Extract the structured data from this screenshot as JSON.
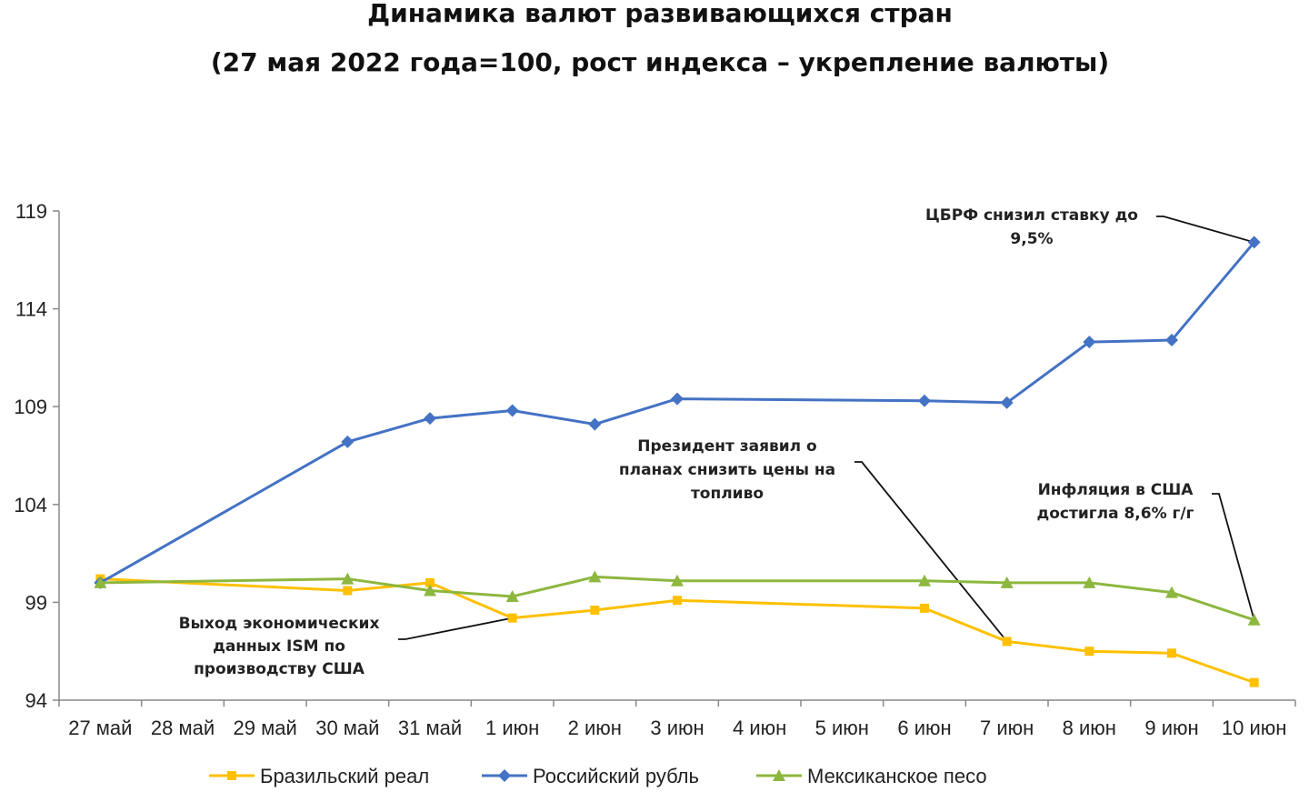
{
  "chart_data": {
    "type": "line",
    "title": "Динамика валют развивающихся стран",
    "subtitle": "(27 мая 2022 года=100, рост индекса – укрепление валюты)",
    "xlabel": "",
    "ylabel": "",
    "ylim": [
      94,
      119
    ],
    "yticks": [
      "94",
      "99",
      "104",
      "109",
      "114",
      "119"
    ],
    "categories": [
      "27 май",
      "28 май",
      "29 май",
      "30 май",
      "31 май",
      "1 июн",
      "2 июн",
      "3 июн",
      "4 июн",
      "5 июн",
      "6 июн",
      "7 июн",
      "8 июн",
      "9 июн",
      "10 июн"
    ],
    "grid": false,
    "legend_position": "bottom",
    "series": [
      {
        "name": "Бразильский реал",
        "color": "#FFC000",
        "marker": "square",
        "points": [
          [
            0,
            100.2
          ],
          [
            3,
            99.6
          ],
          [
            4,
            100.0
          ],
          [
            5,
            98.2
          ],
          [
            6,
            98.6
          ],
          [
            7,
            99.1
          ],
          [
            10,
            98.7
          ],
          [
            11,
            97.0
          ],
          [
            12,
            96.5
          ],
          [
            13,
            96.4
          ],
          [
            14,
            94.9
          ]
        ]
      },
      {
        "name": "Российский рубль",
        "color": "#4472C4",
        "marker": "diamond",
        "points": [
          [
            0,
            100.0
          ],
          [
            3,
            107.2
          ],
          [
            4,
            108.4
          ],
          [
            5,
            108.8
          ],
          [
            6,
            108.1
          ],
          [
            7,
            109.4
          ],
          [
            10,
            109.3
          ],
          [
            11,
            109.2
          ],
          [
            12,
            112.3
          ],
          [
            13,
            112.4
          ],
          [
            14,
            117.4
          ]
        ]
      },
      {
        "name": "Мексиканское песо",
        "color": "#8DB73F",
        "marker": "triangle",
        "points": [
          [
            0,
            100.0
          ],
          [
            3,
            100.2
          ],
          [
            4,
            99.6
          ],
          [
            5,
            99.3
          ],
          [
            6,
            100.3
          ],
          [
            7,
            100.1
          ],
          [
            10,
            100.1
          ],
          [
            11,
            100.0
          ],
          [
            12,
            100.0
          ],
          [
            13,
            99.5
          ],
          [
            14,
            98.1
          ]
        ]
      }
    ],
    "annotations": [
      {
        "lines": [
          "ЦБРФ снизил ставку до",
          "9,5%"
        ],
        "series": 1,
        "point": 14
      },
      {
        "lines": [
          "Президент заявил о",
          "планах снизить цены на",
          "топливо"
        ],
        "series": 0,
        "point": 11
      },
      {
        "lines": [
          "Инфляция в США",
          "достигла 8,6% г/г"
        ],
        "series": 2,
        "point": 14
      },
      {
        "lines": [
          "Выход экономических",
          "данных ISM по",
          "производству США"
        ],
        "series": 0,
        "point": 5
      }
    ]
  }
}
